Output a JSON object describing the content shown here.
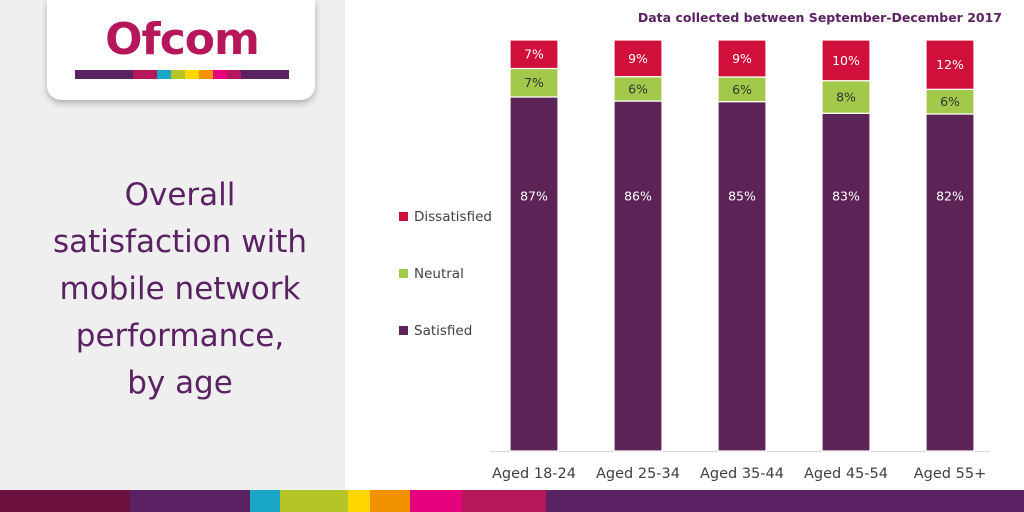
{
  "logo": {
    "text": "Ofcom",
    "stripe_colors": [
      "#5b2263",
      "#b5175a",
      "#1aa6c7",
      "#b5c427",
      "#ffd600",
      "#f39200",
      "#e6007e",
      "#b5175a",
      "#5b2263"
    ]
  },
  "headline": {
    "lines": [
      "Overall",
      "satisfaction with",
      "mobile network",
      "performance,",
      "by age"
    ]
  },
  "note": "Data collected between September-December 2017",
  "colors": {
    "satisfied": "#5c2456",
    "neutral": "#a3c94a",
    "dissatisfied": "#d0103a",
    "headline": "#5b2263",
    "panel": "#efefef"
  },
  "bottom_stripe_colors": [
    "#6d1140",
    "#5b2263",
    "#5b2263",
    "#1aa6c7",
    "#b5c427",
    "#ffd600",
    "#f39200",
    "#e6007e",
    "#b5175a",
    "#5b2263"
  ],
  "chart_data": {
    "type": "bar",
    "stacked": true,
    "categories": [
      "Aged 18-24",
      "Aged 25-34",
      "Aged 35-44",
      "Aged 45-54",
      "Aged 55+"
    ],
    "series": [
      {
        "name": "Satisfied",
        "values": [
          87,
          86,
          85,
          83,
          82
        ],
        "labels": [
          "87%",
          "86%",
          "85%",
          "83%",
          "82%"
        ]
      },
      {
        "name": "Neutral",
        "values": [
          7,
          6,
          6,
          8,
          6
        ],
        "labels": [
          "7%",
          "6%",
          "6%",
          "8%",
          "6%"
        ]
      },
      {
        "name": "Dissatisfied",
        "values": [
          7,
          9,
          9,
          10,
          12
        ],
        "labels": [
          "7%",
          "9%",
          "9%",
          "10%",
          "12%"
        ]
      }
    ],
    "legend": [
      "Dissatisfied",
      "Neutral",
      "Satisfied"
    ],
    "legend_position": "left",
    "ylim": [
      0,
      100
    ],
    "grid": false
  }
}
